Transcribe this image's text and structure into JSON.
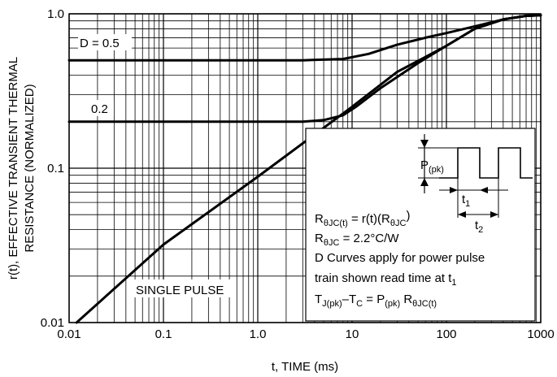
{
  "chart_data": {
    "type": "line",
    "x_scale": "log",
    "y_scale": "log",
    "xlim": [
      0.01,
      1000
    ],
    "ylim": [
      0.01,
      1.0
    ],
    "grid": true,
    "xlabel": "t, TIME (ms)",
    "ylabel": {
      "line1": "r(t), EFFECTIVE TRANSIENT THERMAL",
      "line2": "RESISTANCE (NORMALIZED)"
    },
    "x_tick_labels": [
      "0.01",
      "0.1",
      "1.0",
      "10",
      "100",
      "1000"
    ],
    "x_ticks": [
      0.01,
      0.1,
      1,
      10,
      100,
      1000
    ],
    "y_tick_labels": [
      "0.01",
      "0.1",
      "1.0"
    ],
    "y_ticks": [
      0.01,
      0.1,
      1.0
    ],
    "series": [
      {
        "name": "D = 0.5",
        "x": [
          0.01,
          0.1,
          1,
          3,
          8,
          15,
          30,
          60,
          100,
          200,
          400,
          700,
          1000
        ],
        "y": [
          0.5,
          0.5,
          0.5,
          0.5,
          0.51,
          0.55,
          0.63,
          0.7,
          0.75,
          0.83,
          0.92,
          0.97,
          0.98
        ]
      },
      {
        "name": "0.2",
        "x": [
          0.01,
          0.1,
          1,
          3,
          5,
          8,
          11,
          20,
          50,
          100,
          200,
          400,
          700,
          1000
        ],
        "y": [
          0.2,
          0.2,
          0.2,
          0.2,
          0.205,
          0.22,
          0.25,
          0.33,
          0.48,
          0.62,
          0.8,
          0.92,
          0.97,
          0.98
        ]
      },
      {
        "name": "SINGLE PULSE",
        "x": [
          0.012,
          0.1,
          1,
          10,
          30,
          100,
          200,
          400,
          700,
          1000
        ],
        "y": [
          0.01,
          0.032,
          0.088,
          0.25,
          0.42,
          0.62,
          0.8,
          0.92,
          0.97,
          0.98
        ]
      }
    ]
  },
  "legend_box": {
    "p_label_main": "P",
    "p_label_sub": "(pk)",
    "t1_main": "t",
    "t1_sub": "1",
    "t2_main": "t",
    "t2_sub": "2",
    "notes": {
      "line1": {
        "a": "R",
        "a_sub": "θJC(t)",
        "b": " = r(t)(R",
        "b_sub": "θJC",
        "c": ")"
      },
      "line2": {
        "a": "R",
        "a_sub": "θJC",
        "b": " = 2.2°C/W"
      },
      "line3": "D Curves apply for power pulse",
      "line4": {
        "a": "train shown read time at t",
        "a_sub": "1"
      },
      "line5": {
        "a": "T",
        "a_sub": "J(pk)",
        "b": "–T",
        "b_sub": "C",
        "c": " = P",
        "c_sub": "(pk)",
        "d": " R",
        "d_sub": "θJC(t)"
      }
    }
  }
}
